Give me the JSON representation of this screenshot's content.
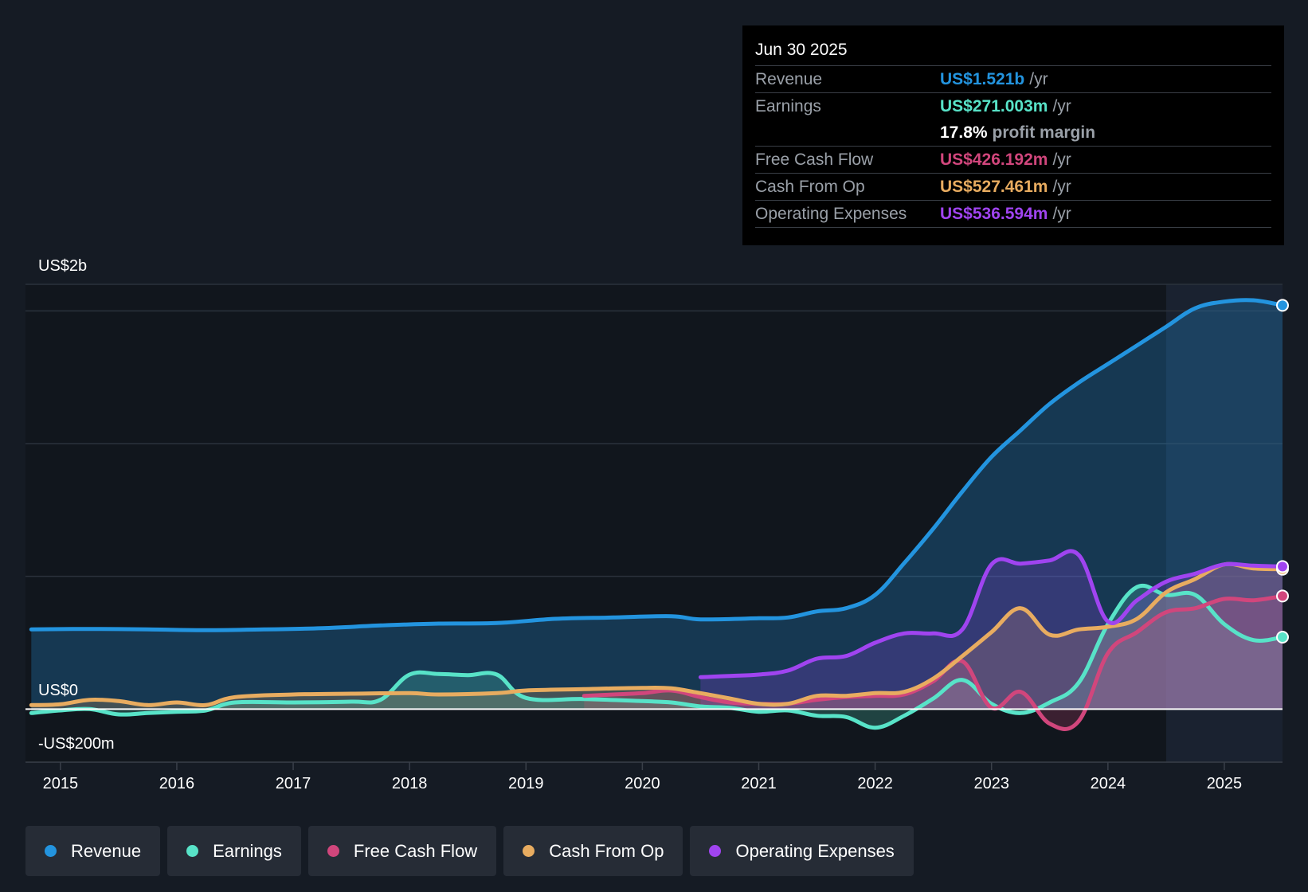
{
  "tooltip": {
    "date": "Jun 30 2025",
    "revenue_label": "Revenue",
    "revenue_value": "US$1.521b",
    "earnings_label": "Earnings",
    "earnings_value": "US$271.003m",
    "margin_value": "17.8%",
    "margin_label": "profit margin",
    "fcf_label": "Free Cash Flow",
    "fcf_value": "US$426.192m",
    "cfo_label": "Cash From Op",
    "cfo_value": "US$527.461m",
    "opex_label": "Operating Expenses",
    "opex_value": "US$536.594m",
    "unit": "/yr"
  },
  "legend": [
    {
      "label": "Revenue",
      "color": "#2394df"
    },
    {
      "label": "Earnings",
      "color": "#58e3c8"
    },
    {
      "label": "Free Cash Flow",
      "color": "#d1467c"
    },
    {
      "label": "Cash From Op",
      "color": "#e8ac60"
    },
    {
      "label": "Operating Expenses",
      "color": "#a044f0"
    }
  ],
  "chart_data": {
    "type": "area",
    "y_axis_labels": [
      "US$2b",
      "US$0",
      "-US$200m"
    ],
    "ylim": [
      -200,
      1600
    ],
    "xlim": [
      2014.7,
      2025.5
    ],
    "x_ticks": [
      "2015",
      "2016",
      "2017",
      "2018",
      "2019",
      "2020",
      "2021",
      "2022",
      "2023",
      "2024",
      "2025"
    ],
    "grid": true,
    "highlight_from": 2024.5,
    "series": [
      {
        "name": "Revenue",
        "color": "#2394df",
        "points": [
          [
            2014.75,
            300
          ],
          [
            2015.25,
            302
          ],
          [
            2015.75,
            300
          ],
          [
            2016.25,
            297
          ],
          [
            2016.75,
            300
          ],
          [
            2017.25,
            305
          ],
          [
            2017.75,
            315
          ],
          [
            2018.25,
            322
          ],
          [
            2018.75,
            324
          ],
          [
            2019.25,
            340
          ],
          [
            2019.75,
            345
          ],
          [
            2020.25,
            350
          ],
          [
            2020.5,
            338
          ],
          [
            2021.0,
            342
          ],
          [
            2021.25,
            345
          ],
          [
            2021.5,
            368
          ],
          [
            2021.75,
            380
          ],
          [
            2022.0,
            430
          ],
          [
            2022.25,
            550
          ],
          [
            2022.5,
            680
          ],
          [
            2022.75,
            820
          ],
          [
            2023.0,
            950
          ],
          [
            2023.25,
            1050
          ],
          [
            2023.5,
            1150
          ],
          [
            2023.75,
            1230
          ],
          [
            2024.0,
            1300
          ],
          [
            2024.25,
            1370
          ],
          [
            2024.5,
            1440
          ],
          [
            2024.75,
            1510
          ],
          [
            2025.0,
            1535
          ],
          [
            2025.25,
            1540
          ],
          [
            2025.5,
            1521
          ]
        ]
      },
      {
        "name": "Earnings",
        "color": "#58e3c8",
        "points": [
          [
            2014.75,
            -15
          ],
          [
            2015.0,
            -5
          ],
          [
            2015.25,
            0
          ],
          [
            2015.5,
            -20
          ],
          [
            2015.75,
            -15
          ],
          [
            2016.0,
            -10
          ],
          [
            2016.25,
            -5
          ],
          [
            2016.5,
            25
          ],
          [
            2017.0,
            25
          ],
          [
            2017.5,
            28
          ],
          [
            2017.75,
            35
          ],
          [
            2018.0,
            130
          ],
          [
            2018.25,
            132
          ],
          [
            2018.5,
            128
          ],
          [
            2018.75,
            130
          ],
          [
            2019.0,
            42
          ],
          [
            2019.5,
            38
          ],
          [
            2020.0,
            30
          ],
          [
            2020.25,
            25
          ],
          [
            2020.5,
            10
          ],
          [
            2020.75,
            5
          ],
          [
            2021.0,
            -10
          ],
          [
            2021.25,
            -5
          ],
          [
            2021.5,
            -25
          ],
          [
            2021.75,
            -30
          ],
          [
            2022.0,
            -70
          ],
          [
            2022.25,
            -25
          ],
          [
            2022.5,
            40
          ],
          [
            2022.75,
            110
          ],
          [
            2023.0,
            20
          ],
          [
            2023.25,
            -15
          ],
          [
            2023.5,
            25
          ],
          [
            2023.75,
            100
          ],
          [
            2024.0,
            320
          ],
          [
            2024.25,
            460
          ],
          [
            2024.5,
            430
          ],
          [
            2024.75,
            430
          ],
          [
            2025.0,
            320
          ],
          [
            2025.25,
            260
          ],
          [
            2025.5,
            271
          ]
        ]
      },
      {
        "name": "Free Cash Flow",
        "color": "#d1467c",
        "points": [
          [
            2019.5,
            50
          ],
          [
            2019.75,
            55
          ],
          [
            2020.0,
            60
          ],
          [
            2020.25,
            70
          ],
          [
            2020.5,
            45
          ],
          [
            2020.75,
            25
          ],
          [
            2021.0,
            20
          ],
          [
            2021.25,
            20
          ],
          [
            2021.5,
            35
          ],
          [
            2021.75,
            45
          ],
          [
            2022.0,
            50
          ],
          [
            2022.25,
            55
          ],
          [
            2022.5,
            105
          ],
          [
            2022.75,
            180
          ],
          [
            2023.0,
            5
          ],
          [
            2023.25,
            65
          ],
          [
            2023.5,
            -55
          ],
          [
            2023.75,
            -45
          ],
          [
            2024.0,
            210
          ],
          [
            2024.25,
            290
          ],
          [
            2024.5,
            365
          ],
          [
            2024.75,
            380
          ],
          [
            2025.0,
            415
          ],
          [
            2025.25,
            410
          ],
          [
            2025.5,
            426
          ]
        ]
      },
      {
        "name": "Cash From Op",
        "color": "#e8ac60",
        "points": [
          [
            2014.75,
            15
          ],
          [
            2015.0,
            18
          ],
          [
            2015.25,
            35
          ],
          [
            2015.5,
            30
          ],
          [
            2015.75,
            15
          ],
          [
            2016.0,
            25
          ],
          [
            2016.25,
            15
          ],
          [
            2016.5,
            45
          ],
          [
            2017.0,
            55
          ],
          [
            2017.5,
            58
          ],
          [
            2018.0,
            60
          ],
          [
            2018.25,
            55
          ],
          [
            2018.75,
            60
          ],
          [
            2019.0,
            70
          ],
          [
            2019.5,
            75
          ],
          [
            2020.0,
            80
          ],
          [
            2020.25,
            78
          ],
          [
            2020.5,
            60
          ],
          [
            2020.75,
            40
          ],
          [
            2021.0,
            20
          ],
          [
            2021.25,
            20
          ],
          [
            2021.5,
            50
          ],
          [
            2021.75,
            50
          ],
          [
            2022.0,
            60
          ],
          [
            2022.25,
            65
          ],
          [
            2022.5,
            115
          ],
          [
            2022.75,
            200
          ],
          [
            2023.0,
            290
          ],
          [
            2023.25,
            380
          ],
          [
            2023.5,
            280
          ],
          [
            2023.75,
            300
          ],
          [
            2024.0,
            310
          ],
          [
            2024.25,
            340
          ],
          [
            2024.5,
            440
          ],
          [
            2024.75,
            490
          ],
          [
            2025.0,
            545
          ],
          [
            2025.25,
            530
          ],
          [
            2025.5,
            527
          ]
        ]
      },
      {
        "name": "Operating Expenses",
        "color": "#a044f0",
        "points": [
          [
            2020.5,
            120
          ],
          [
            2020.75,
            125
          ],
          [
            2021.0,
            130
          ],
          [
            2021.25,
            145
          ],
          [
            2021.5,
            190
          ],
          [
            2021.75,
            200
          ],
          [
            2022.0,
            250
          ],
          [
            2022.25,
            285
          ],
          [
            2022.5,
            285
          ],
          [
            2022.75,
            300
          ],
          [
            2023.0,
            545
          ],
          [
            2023.25,
            548
          ],
          [
            2023.5,
            560
          ],
          [
            2023.75,
            580
          ],
          [
            2024.0,
            330
          ],
          [
            2024.25,
            410
          ],
          [
            2024.5,
            480
          ],
          [
            2024.75,
            510
          ],
          [
            2025.0,
            545
          ],
          [
            2025.25,
            540
          ],
          [
            2025.5,
            537
          ]
        ]
      }
    ]
  }
}
